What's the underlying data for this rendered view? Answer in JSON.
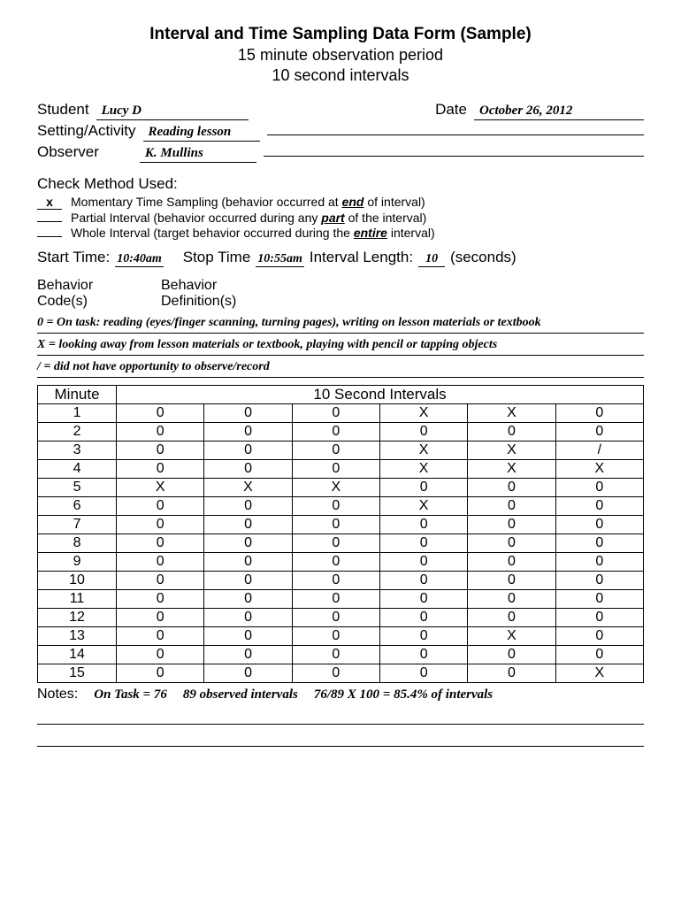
{
  "header": {
    "title": "Interval and Time Sampling Data Form (Sample)",
    "subtitle1": "15 minute observation period",
    "subtitle2": "10 second intervals"
  },
  "fields": {
    "student_label": "Student",
    "student_value": "Lucy D",
    "date_label": "Date",
    "date_value": "October 26, 2012",
    "setting_label": "Setting/Activity",
    "setting_value": "Reading lesson",
    "observer_label": "Observer",
    "observer_value": "K. Mullins"
  },
  "method": {
    "heading": "Check Method Used:",
    "options": [
      {
        "checked": "x",
        "text_before": "Momentary Time Sampling (behavior occurred at ",
        "bold": "end",
        "text_after": " of interval)"
      },
      {
        "checked": "",
        "text_before": "Partial Interval (behavior occurred during any ",
        "bold": "part",
        "text_after": " of the interval)"
      },
      {
        "checked": "",
        "text_before": "Whole Interval (target behavior occurred during the ",
        "bold": "entire",
        "text_after": " interval)"
      }
    ]
  },
  "timing": {
    "start_label": "Start Time:",
    "start_value": "10:40am",
    "stop_label": "Stop Time",
    "stop_value": "10:55am",
    "length_label": "Interval Length:",
    "length_value": "10",
    "length_unit": "(seconds)"
  },
  "codes": {
    "col1": "Behavior Code(s)",
    "col2": "Behavior Definition(s)",
    "lines": [
      "0 = On task:  reading (eyes/finger scanning, turning pages), writing on lesson materials or textbook",
      "X = looking away from lesson materials or textbook, playing with pencil or tapping objects",
      "/ = did not have opportunity to observe/record"
    ]
  },
  "table": {
    "minute_header": "Minute",
    "intervals_header": "10 Second Intervals",
    "rows": [
      [
        "1",
        "0",
        "0",
        "0",
        "X",
        "X",
        "0"
      ],
      [
        "2",
        "0",
        "0",
        "0",
        "0",
        "0",
        "0"
      ],
      [
        "3",
        "0",
        "0",
        "0",
        "X",
        "X",
        "/"
      ],
      [
        "4",
        "0",
        "0",
        "0",
        "X",
        "X",
        "X"
      ],
      [
        "5",
        "X",
        "X",
        "X",
        "0",
        "0",
        "0"
      ],
      [
        "6",
        "0",
        "0",
        "0",
        "X",
        "0",
        "0"
      ],
      [
        "7",
        "0",
        "0",
        "0",
        "0",
        "0",
        "0"
      ],
      [
        "8",
        "0",
        "0",
        "0",
        "0",
        "0",
        "0"
      ],
      [
        "9",
        "0",
        "0",
        "0",
        "0",
        "0",
        "0"
      ],
      [
        "10",
        "0",
        "0",
        "0",
        "0",
        "0",
        "0"
      ],
      [
        "11",
        "0",
        "0",
        "0",
        "0",
        "0",
        "0"
      ],
      [
        "12",
        "0",
        "0",
        "0",
        "0",
        "0",
        "0"
      ],
      [
        "13",
        "0",
        "0",
        "0",
        "0",
        "X",
        "0"
      ],
      [
        "14",
        "0",
        "0",
        "0",
        "0",
        "0",
        "0"
      ],
      [
        "15",
        "0",
        "0",
        "0",
        "0",
        "0",
        "X"
      ]
    ]
  },
  "notes": {
    "label": "Notes:",
    "n1": "On Task  = 76",
    "n2": "89 observed intervals",
    "n3": "76/89 X 100 = 85.4% of intervals"
  }
}
